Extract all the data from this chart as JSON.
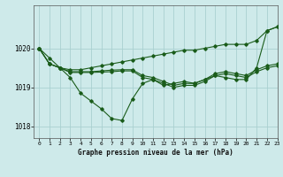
{
  "background_color": "#ceeaea",
  "grid_color": "#aad0d0",
  "line_color": "#1a5c1a",
  "title": "Graphe pression niveau de la mer (hPa)",
  "xlim": [
    -0.5,
    23
  ],
  "ylim": [
    1017.7,
    1021.1
  ],
  "yticks": [
    1018,
    1019,
    1020
  ],
  "xticks": [
    0,
    1,
    2,
    3,
    4,
    5,
    6,
    7,
    8,
    9,
    10,
    11,
    12,
    13,
    14,
    15,
    16,
    17,
    18,
    19,
    20,
    21,
    22,
    23
  ],
  "series": [
    {
      "x": [
        0,
        1,
        2,
        3,
        4,
        5,
        6,
        7,
        8,
        9,
        10,
        11,
        12,
        13,
        14,
        15,
        16,
        17,
        18,
        19,
        20,
        21,
        22,
        23
      ],
      "y": [
        1020.0,
        1019.75,
        1019.5,
        1019.25,
        1018.85,
        1018.65,
        1018.45,
        1018.2,
        1018.15,
        1018.7,
        1019.1,
        1019.2,
        1019.05,
        1019.1,
        1019.15,
        1019.1,
        1019.2,
        1019.3,
        1019.25,
        1019.2,
        1019.2,
        1019.5,
        1020.45,
        1020.55
      ]
    },
    {
      "x": [
        0,
        1,
        2,
        3,
        4,
        5,
        6,
        7,
        8,
        9,
        10,
        11,
        12,
        13,
        14,
        15,
        16,
        17,
        18,
        19,
        20,
        21,
        22,
        23
      ],
      "y": [
        1020.0,
        1019.6,
        1019.5,
        1019.45,
        1019.45,
        1019.5,
        1019.55,
        1019.6,
        1019.65,
        1019.7,
        1019.75,
        1019.8,
        1019.85,
        1019.9,
        1019.95,
        1019.95,
        1020.0,
        1020.05,
        1020.1,
        1020.1,
        1020.1,
        1020.2,
        1020.45,
        1020.55
      ]
    },
    {
      "x": [
        0,
        1,
        2,
        3,
        4,
        5,
        6,
        7,
        8,
        9,
        10,
        11,
        12,
        13,
        14,
        15,
        16,
        17,
        18,
        19,
        20,
        21,
        22,
        23
      ],
      "y": [
        1020.0,
        1019.6,
        1019.5,
        1019.4,
        1019.4,
        1019.4,
        1019.42,
        1019.44,
        1019.45,
        1019.45,
        1019.3,
        1019.25,
        1019.15,
        1019.05,
        1019.1,
        1019.1,
        1019.2,
        1019.35,
        1019.4,
        1019.35,
        1019.3,
        1019.45,
        1019.55,
        1019.6
      ]
    },
    {
      "x": [
        0,
        1,
        2,
        3,
        4,
        5,
        6,
        7,
        8,
        9,
        10,
        11,
        12,
        13,
        14,
        15,
        16,
        17,
        18,
        19,
        20,
        21,
        22,
        23
      ],
      "y": [
        1020.0,
        1019.6,
        1019.5,
        1019.38,
        1019.38,
        1019.38,
        1019.39,
        1019.4,
        1019.42,
        1019.42,
        1019.25,
        1019.2,
        1019.1,
        1019.0,
        1019.05,
        1019.05,
        1019.15,
        1019.3,
        1019.35,
        1019.3,
        1019.25,
        1019.4,
        1019.5,
        1019.55
      ]
    }
  ]
}
